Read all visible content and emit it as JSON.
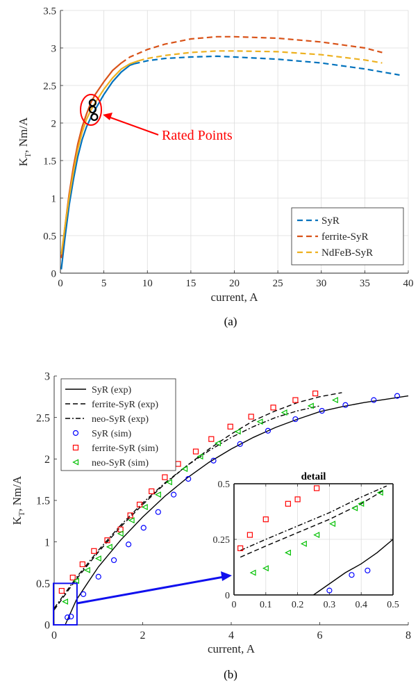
{
  "figure": {
    "panels": [
      "(a)",
      "(b)"
    ]
  },
  "chart_data": [
    {
      "type": "line",
      "caption": "(a)",
      "xlabel": "current, A",
      "ylabel_main": "K",
      "ylabel_sub": "T",
      "ylabel_rest": ", Nm/A",
      "xlim": [
        0,
        40
      ],
      "ylim": [
        0,
        3.5
      ],
      "xticks": [
        0,
        5,
        10,
        15,
        20,
        25,
        30,
        35,
        40
      ],
      "yticks": [
        0,
        0.5,
        1,
        1.5,
        2,
        2.5,
        3,
        3.5
      ],
      "grid": true,
      "legend_position": "bottom-right",
      "annotation": "Rated Points",
      "colors": {
        "SyR": "#0072BD",
        "ferrite-SyR": "#D95319",
        "NdFeB-SyR": "#EDB120",
        "annotation": "#FF0000"
      },
      "series": [
        {
          "name": "SyR",
          "solid": [
            [
              0.1,
              0.05
            ],
            [
              0.5,
              0.45
            ],
            [
              1,
              0.9
            ],
            [
              1.5,
              1.25
            ],
            [
              2,
              1.55
            ],
            [
              2.5,
              1.78
            ],
            [
              3,
              1.95
            ],
            [
              3.5,
              2.07
            ],
            [
              4,
              2.18
            ],
            [
              5,
              2.38
            ],
            [
              6,
              2.55
            ],
            [
              7,
              2.68
            ],
            [
              8,
              2.77
            ],
            [
              8.5,
              2.79
            ]
          ],
          "dashed": [
            [
              8.5,
              2.79
            ],
            [
              10,
              2.83
            ],
            [
              12,
              2.86
            ],
            [
              15,
              2.88
            ],
            [
              18,
              2.89
            ],
            [
              20,
              2.88
            ],
            [
              25,
              2.85
            ],
            [
              30,
              2.8
            ],
            [
              35,
              2.72
            ],
            [
              39,
              2.64
            ]
          ]
        },
        {
          "name": "ferrite-SyR",
          "solid": [
            [
              0.1,
              0.2
            ],
            [
              0.5,
              0.6
            ],
            [
              1,
              1.05
            ],
            [
              1.5,
              1.42
            ],
            [
              2,
              1.72
            ],
            [
              2.5,
              1.95
            ],
            [
              3,
              2.12
            ],
            [
              3.5,
              2.27
            ],
            [
              4,
              2.38
            ],
            [
              5,
              2.55
            ],
            [
              6,
              2.7
            ],
            [
              7,
              2.8
            ]
          ],
          "dashed": [
            [
              7,
              2.8
            ],
            [
              8,
              2.88
            ],
            [
              10,
              2.98
            ],
            [
              12,
              3.05
            ],
            [
              15,
              3.12
            ],
            [
              18,
              3.15
            ],
            [
              20,
              3.15
            ],
            [
              25,
              3.13
            ],
            [
              30,
              3.08
            ],
            [
              35,
              3.0
            ],
            [
              37,
              2.94
            ]
          ]
        },
        {
          "name": "NdFeB-SyR",
          "solid": [
            [
              0.1,
              0.25
            ],
            [
              0.5,
              0.6
            ],
            [
              1,
              1.0
            ],
            [
              1.5,
              1.35
            ],
            [
              2,
              1.65
            ],
            [
              2.5,
              1.88
            ],
            [
              3,
              2.05
            ],
            [
              3.5,
              2.17
            ],
            [
              4,
              2.27
            ],
            [
              5,
              2.45
            ],
            [
              6,
              2.6
            ],
            [
              7,
              2.72
            ],
            [
              8,
              2.79
            ],
            [
              9,
              2.83
            ]
          ],
          "dashed": [
            [
              9,
              2.83
            ],
            [
              10,
              2.86
            ],
            [
              12,
              2.9
            ],
            [
              15,
              2.94
            ],
            [
              18,
              2.96
            ],
            [
              20,
              2.96
            ],
            [
              25,
              2.95
            ],
            [
              30,
              2.91
            ],
            [
              35,
              2.84
            ],
            [
              37,
              2.8
            ]
          ]
        }
      ],
      "rated_points": [
        [
          3.7,
          2.27
        ],
        [
          3.7,
          2.18
        ],
        [
          3.9,
          2.08
        ]
      ]
    },
    {
      "type": "line",
      "caption": "(b)",
      "xlabel": "current, A",
      "ylabel_main": "K",
      "ylabel_sub": "T",
      "ylabel_rest": ", Nm/A",
      "xlim": [
        0,
        8
      ],
      "ylim": [
        0,
        3
      ],
      "xticks": [
        0,
        2,
        4,
        6,
        8
      ],
      "yticks": [
        0,
        0.5,
        1,
        1.5,
        2,
        2.5,
        3
      ],
      "grid": false,
      "legend_position": "top-left",
      "colors": {
        "exp": "#000000",
        "SyR (sim)": "#0000FF",
        "ferrite-SyR (sim)": "#FF0000",
        "neo-SyR (sim)": "#00C000"
      },
      "series": [
        {
          "name": "SyR (exp)",
          "style": "solid",
          "points": [
            [
              0.25,
              0
            ],
            [
              0.5,
              0.3
            ],
            [
              0.75,
              0.5
            ],
            [
              1,
              0.7
            ],
            [
              1.5,
              1.02
            ],
            [
              2,
              1.3
            ],
            [
              2.5,
              1.55
            ],
            [
              3,
              1.77
            ],
            [
              3.5,
              1.96
            ],
            [
              4,
              2.12
            ],
            [
              4.5,
              2.26
            ],
            [
              5,
              2.38
            ],
            [
              5.5,
              2.48
            ],
            [
              6,
              2.57
            ],
            [
              6.5,
              2.63
            ],
            [
              7,
              2.68
            ],
            [
              7.5,
              2.72
            ],
            [
              8,
              2.76
            ]
          ]
        },
        {
          "name": "ferrite-SyR (exp)",
          "style": "dashed",
          "points": [
            [
              0,
              0.18
            ],
            [
              0.5,
              0.55
            ],
            [
              1,
              0.88
            ],
            [
              1.5,
              1.18
            ],
            [
              2,
              1.45
            ],
            [
              2.5,
              1.7
            ],
            [
              3,
              1.92
            ],
            [
              3.5,
              2.12
            ],
            [
              4,
              2.3
            ],
            [
              4.5,
              2.46
            ],
            [
              5,
              2.58
            ],
            [
              5.5,
              2.68
            ],
            [
              6,
              2.75
            ],
            [
              6.5,
              2.8
            ]
          ]
        },
        {
          "name": "neo-SyR (exp)",
          "style": "dashdot",
          "points": [
            [
              0,
              0.2
            ],
            [
              0.5,
              0.57
            ],
            [
              1,
              0.9
            ],
            [
              1.5,
              1.2
            ],
            [
              2,
              1.47
            ],
            [
              2.5,
              1.71
            ],
            [
              3,
              1.92
            ],
            [
              3.5,
              2.1
            ],
            [
              4,
              2.26
            ],
            [
              4.5,
              2.39
            ],
            [
              5,
              2.5
            ],
            [
              5.5,
              2.58
            ],
            [
              6,
              2.64
            ]
          ]
        },
        {
          "name": "SyR (sim)",
          "marker": "circle",
          "points": [
            [
              0.3,
              0.09
            ],
            [
              0.38,
              0.1
            ],
            [
              0.66,
              0.37
            ],
            [
              1,
              0.58
            ],
            [
              1.35,
              0.78
            ],
            [
              1.68,
              0.97
            ],
            [
              2.02,
              1.17
            ],
            [
              2.35,
              1.36
            ],
            [
              2.7,
              1.57
            ],
            [
              3.03,
              1.76
            ],
            [
              3.6,
              1.98
            ],
            [
              4.2,
              2.18
            ],
            [
              4.83,
              2.34
            ],
            [
              5.45,
              2.48
            ],
            [
              6.05,
              2.58
            ],
            [
              6.58,
              2.65
            ],
            [
              7.22,
              2.71
            ],
            [
              7.75,
              2.76
            ]
          ]
        },
        {
          "name": "ferrite-SyR (sim)",
          "marker": "square",
          "points": [
            [
              0.17,
              0.41
            ],
            [
              0.42,
              0.57
            ],
            [
              0.64,
              0.73
            ],
            [
              0.9,
              0.89
            ],
            [
              1.2,
              1.02
            ],
            [
              1.5,
              1.15
            ],
            [
              1.72,
              1.32
            ],
            [
              1.93,
              1.45
            ],
            [
              2.2,
              1.61
            ],
            [
              2.5,
              1.78
            ],
            [
              2.8,
              1.94
            ],
            [
              3.2,
              2.09
            ],
            [
              3.55,
              2.24
            ],
            [
              3.98,
              2.39
            ],
            [
              4.45,
              2.51
            ],
            [
              4.95,
              2.62
            ],
            [
              5.45,
              2.71
            ],
            [
              5.9,
              2.79
            ]
          ]
        },
        {
          "name": "neo-SyR (sim)",
          "marker": "triangle-left",
          "points": [
            [
              0.25,
              0.28
            ],
            [
              0.5,
              0.53
            ],
            [
              0.75,
              0.66
            ],
            [
              1,
              0.8
            ],
            [
              1.25,
              0.94
            ],
            [
              1.5,
              1.1
            ],
            [
              1.75,
              1.26
            ],
            [
              2.05,
              1.42
            ],
            [
              2.35,
              1.57
            ],
            [
              2.6,
              1.72
            ],
            [
              2.95,
              1.88
            ],
            [
              3.3,
              2.03
            ],
            [
              3.7,
              2.19
            ],
            [
              4.15,
              2.33
            ],
            [
              4.65,
              2.45
            ],
            [
              5.2,
              2.56
            ],
            [
              5.8,
              2.64
            ],
            [
              6.35,
              2.71
            ]
          ]
        }
      ],
      "inset": {
        "title": "detail",
        "xlim": [
          0,
          0.5
        ],
        "ylim": [
          0,
          0.5
        ],
        "xticks": [
          0,
          0.1,
          0.2,
          0.3,
          0.4,
          0.5
        ],
        "yticks": [
          0,
          0.25,
          0.5
        ],
        "grid": true,
        "series": [
          {
            "name": "SyR (exp)",
            "style": "solid",
            "points": [
              [
                0.25,
                0
              ],
              [
                0.3,
                0.05
              ],
              [
                0.35,
                0.1
              ],
              [
                0.4,
                0.14
              ],
              [
                0.45,
                0.19
              ],
              [
                0.5,
                0.25
              ]
            ]
          },
          {
            "name": "ferrite-SyR (exp)",
            "style": "dashed",
            "points": [
              [
                0.02,
                0.17
              ],
              [
                0.1,
                0.22
              ],
              [
                0.2,
                0.28
              ],
              [
                0.3,
                0.34
              ],
              [
                0.4,
                0.41
              ],
              [
                0.47,
                0.47
              ]
            ]
          },
          {
            "name": "neo-SyR (exp)",
            "style": "dashdot",
            "points": [
              [
                0.02,
                0.2
              ],
              [
                0.1,
                0.25
              ],
              [
                0.2,
                0.31
              ],
              [
                0.3,
                0.37
              ],
              [
                0.4,
                0.44
              ],
              [
                0.48,
                0.49
              ]
            ]
          },
          {
            "name": "SyR (sim)",
            "marker": "circle",
            "points": [
              [
                0.3,
                0.02
              ],
              [
                0.37,
                0.09
              ],
              [
                0.42,
                0.11
              ]
            ]
          },
          {
            "name": "ferrite-SyR (sim)",
            "marker": "square",
            "points": [
              [
                0.02,
                0.21
              ],
              [
                0.05,
                0.27
              ],
              [
                0.1,
                0.34
              ],
              [
                0.17,
                0.41
              ],
              [
                0.2,
                0.43
              ],
              [
                0.26,
                0.48
              ]
            ]
          },
          {
            "name": "neo-SyR (sim)",
            "marker": "triangle-left",
            "points": [
              [
                0.06,
                0.1
              ],
              [
                0.1,
                0.12
              ],
              [
                0.17,
                0.19
              ],
              [
                0.22,
                0.23
              ],
              [
                0.26,
                0.27
              ],
              [
                0.31,
                0.32
              ],
              [
                0.38,
                0.39
              ],
              [
                0.4,
                0.41
              ],
              [
                0.46,
                0.46
              ]
            ]
          }
        ]
      }
    }
  ]
}
